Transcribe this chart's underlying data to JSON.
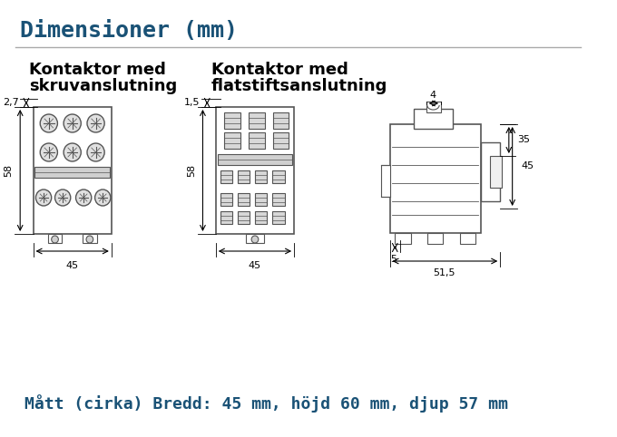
{
  "title": "Dimensioner (mm)",
  "title_color": "#1a5276",
  "title_fontsize": 18,
  "bg_color": "#ffffff",
  "subtitle1_line1": "Kontaktor med",
  "subtitle1_line2": "skruvanslutning",
  "subtitle2_line1": "Kontaktor med",
  "subtitle2_line2": "flatstiftsanslutning",
  "subtitle_fontsize": 13,
  "subtitle_color": "#000000",
  "footer_text": "Mått (cirka) Bredd: 45 mm, höjd 60 mm, djup 57 mm",
  "footer_color": "#1a5276",
  "footer_fontsize": 13,
  "line_color": "#555555",
  "dim_color": "#000000",
  "dim_fontsize": 8
}
